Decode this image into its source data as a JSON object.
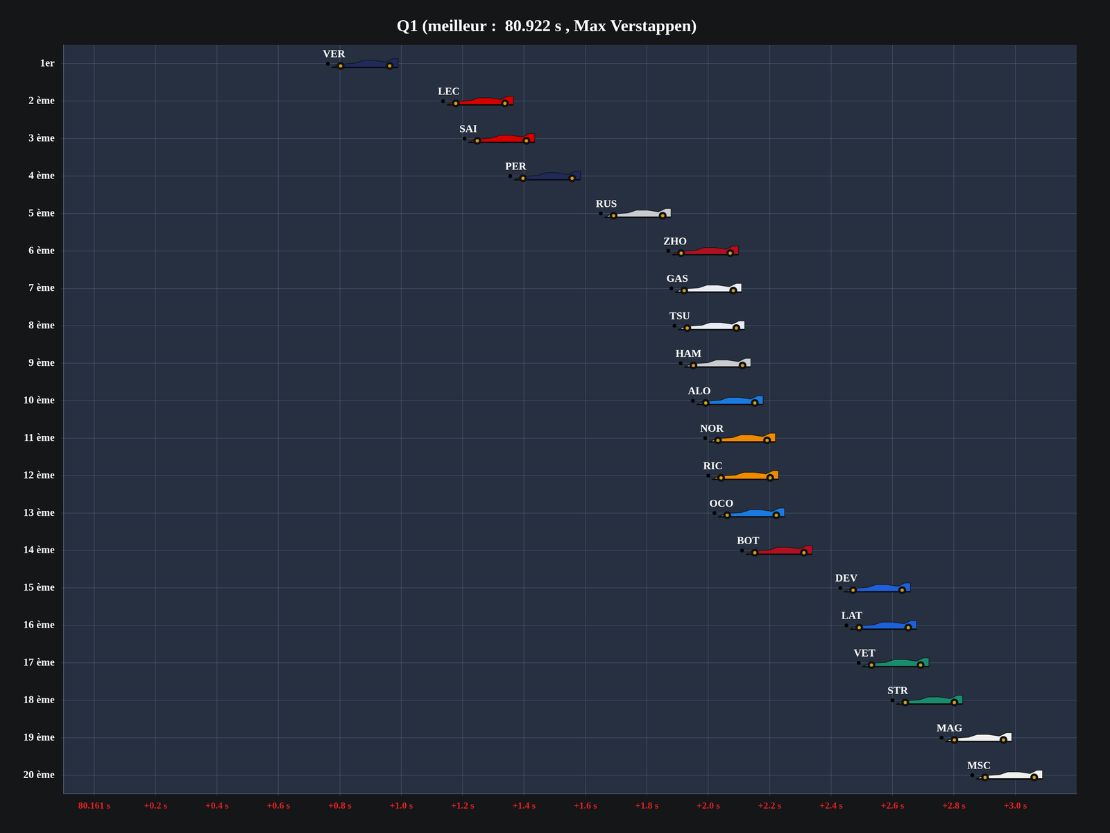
{
  "chart_data": {
    "type": "scatter",
    "title": "Q1 (meilleur :  80.922 s , Max Verstappen)",
    "x": [
      0.761,
      1.136,
      1.206,
      1.355,
      1.65,
      1.87,
      1.88,
      1.89,
      1.91,
      1.95,
      1.99,
      2.0,
      2.02,
      2.11,
      2.43,
      2.45,
      2.49,
      2.6,
      2.76,
      2.86
    ],
    "values": [
      1,
      2,
      3,
      4,
      5,
      6,
      7,
      8,
      9,
      10,
      11,
      12,
      13,
      14,
      15,
      16,
      17,
      18,
      19,
      20
    ],
    "point_labels": [
      "VER",
      "LEC",
      "SAI",
      "PER",
      "RUS",
      "ZHO",
      "GAS",
      "TSU",
      "HAM",
      "ALO",
      "NOR",
      "RIC",
      "OCO",
      "BOT",
      "DEV",
      "LAT",
      "VET",
      "STR",
      "MAG",
      "MSC"
    ],
    "colors": [
      "#1e2a5a",
      "#d40000",
      "#d40000",
      "#1e2a5a",
      "#c8ccd0",
      "#b01020",
      "#e8ecf5",
      "#e8ecf5",
      "#c8ccd0",
      "#1a7ae0",
      "#f08a00",
      "#f08a00",
      "#1a7ae0",
      "#b01020",
      "#1f5fd8",
      "#1f5fd8",
      "#1a8c6e",
      "#1a8c6e",
      "#f0f0f0",
      "#f0f0f0"
    ],
    "marker": "car",
    "xlim": [
      -0.1,
      3.2
    ],
    "xticks": [
      {
        "value": 0,
        "label": "80.161 s"
      },
      {
        "value": 0.2,
        "label": "+0.2 s"
      },
      {
        "value": 0.4,
        "label": "+0.4 s"
      },
      {
        "value": 0.6,
        "label": "+0.6 s"
      },
      {
        "value": 0.8,
        "label": "+0.8 s"
      },
      {
        "value": 1.0,
        "label": "+1.0 s"
      },
      {
        "value": 1.2,
        "label": "+1.2 s"
      },
      {
        "value": 1.4,
        "label": "+1.4 s"
      },
      {
        "value": 1.6,
        "label": "+1.6 s"
      },
      {
        "value": 1.8,
        "label": "+1.8 s"
      },
      {
        "value": 2.0,
        "label": "+2.0 s"
      },
      {
        "value": 2.2,
        "label": "+2.2 s"
      },
      {
        "value": 2.4,
        "label": "+2.4 s"
      },
      {
        "value": 2.6,
        "label": "+2.6 s"
      },
      {
        "value": 2.8,
        "label": "+2.8 s"
      },
      {
        "value": 3.0,
        "label": "+3.0 s"
      }
    ],
    "ylim": [
      0.5,
      20.5
    ],
    "yticks": [
      {
        "value": 1,
        "label": "1er"
      },
      {
        "value": 2,
        "label": "2 ème"
      },
      {
        "value": 3,
        "label": "3 ème"
      },
      {
        "value": 4,
        "label": "4 ème"
      },
      {
        "value": 5,
        "label": "5 ème"
      },
      {
        "value": 6,
        "label": "6 ème"
      },
      {
        "value": 7,
        "label": "7 ème"
      },
      {
        "value": 8,
        "label": "8 ème"
      },
      {
        "value": 9,
        "label": "9 ème"
      },
      {
        "value": 10,
        "label": "10 ème"
      },
      {
        "value": 11,
        "label": "11 ème"
      },
      {
        "value": 12,
        "label": "12 ème"
      },
      {
        "value": 13,
        "label": "13 ème"
      },
      {
        "value": 14,
        "label": "14 ème"
      },
      {
        "value": 15,
        "label": "15 ème"
      },
      {
        "value": 16,
        "label": "16 ème"
      },
      {
        "value": 17,
        "label": "17 ème"
      },
      {
        "value": 18,
        "label": "18 ème"
      },
      {
        "value": 19,
        "label": "19 ème"
      },
      {
        "value": 20,
        "label": "20 ème"
      }
    ],
    "grid": true
  }
}
